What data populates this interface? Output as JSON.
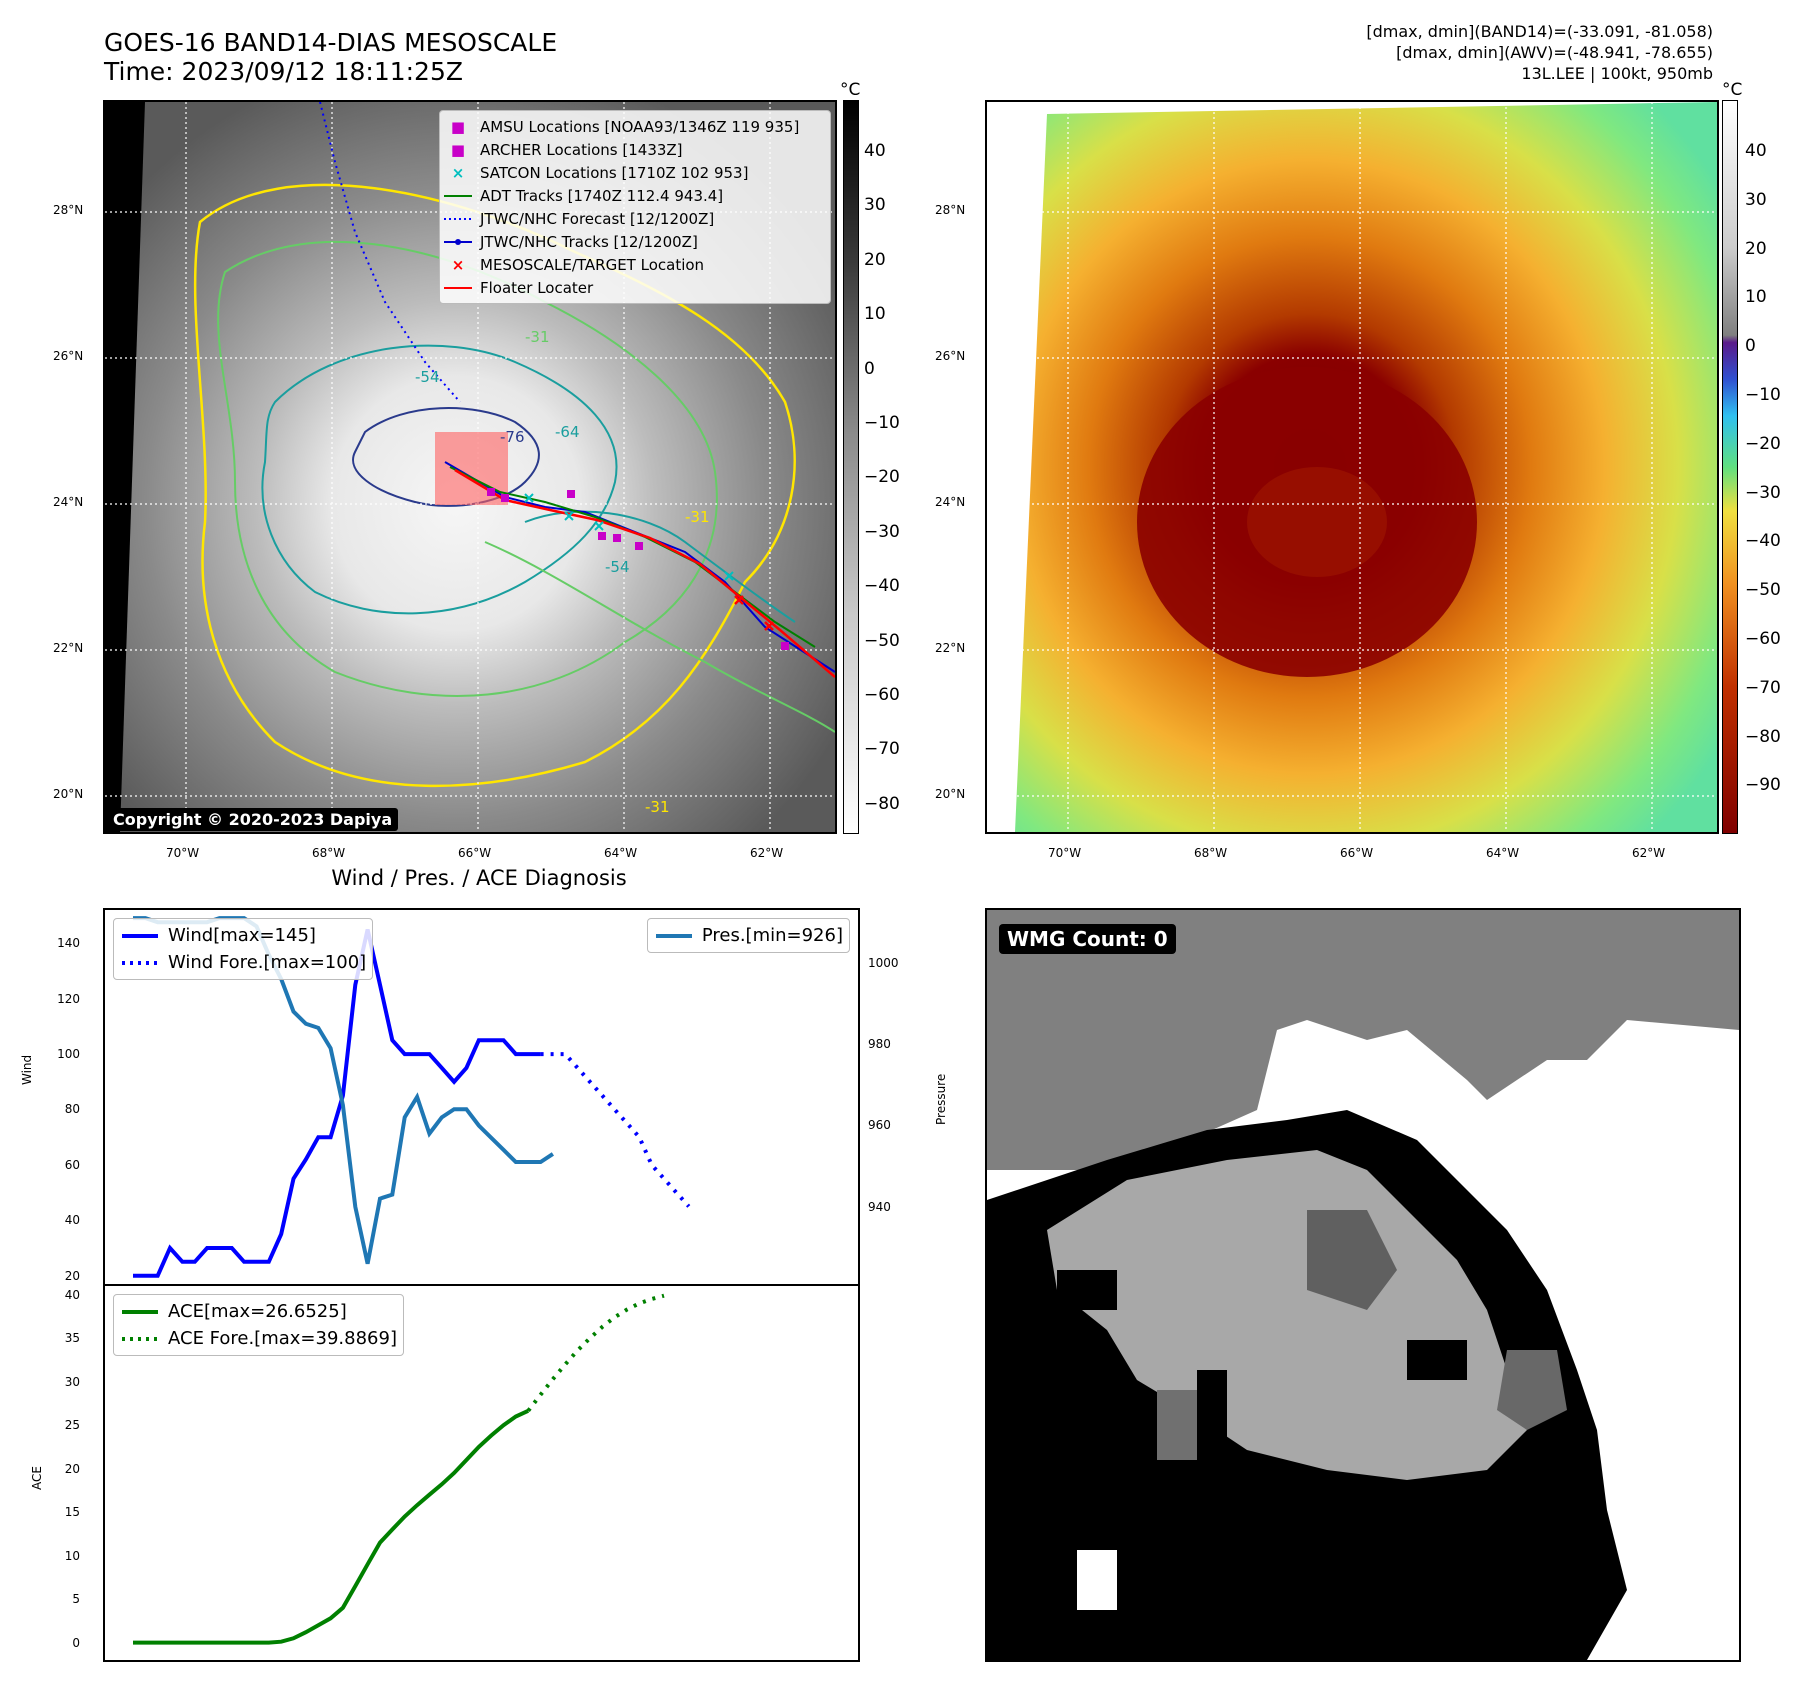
{
  "header": {
    "title_line1": "GOES-16 BAND14-DIAS MESOSCALE",
    "title_line2": "Time: 2023/09/12 18:11:25Z",
    "stats_line1": "[dmax, dmin](BAND14)=(-33.091, -81.058)",
    "stats_line2": "[dmax, dmin](AWV)=(-48.941, -78.655)",
    "stats_line3": "13L.LEE | 100kt, 950mb"
  },
  "map_axes": {
    "lat_labels": [
      "28°N",
      "26°N",
      "24°N",
      "22°N",
      "20°N"
    ],
    "lon_labels": [
      "70°W",
      "68°W",
      "66°W",
      "64°W",
      "62°W"
    ]
  },
  "colorbar_left": {
    "unit": "°C",
    "ticks": [
      "40",
      "30",
      "20",
      "10",
      "0",
      "−10",
      "−20",
      "−30",
      "−40",
      "−50",
      "−60",
      "−70",
      "−80"
    ]
  },
  "colorbar_right": {
    "unit": "°C",
    "ticks": [
      "40",
      "30",
      "20",
      "10",
      "0",
      "−10",
      "−20",
      "−30",
      "−40",
      "−50",
      "−60",
      "−70",
      "−80",
      "−90"
    ]
  },
  "contour_labels": [
    "-31",
    "-54",
    "-64",
    "-76",
    "-54",
    "-31",
    "-31"
  ],
  "map_legend": [
    {
      "label": "AMSU Locations [NOAA93/1346Z 119 935]",
      "symbol": "■",
      "color": "#c800c8"
    },
    {
      "label": "ARCHER Locations [1433Z]",
      "symbol": "■",
      "color": "#c800c8"
    },
    {
      "label": "SATCON Locations [1710Z 102 953]",
      "symbol": "×",
      "color": "#00bfbf"
    },
    {
      "label": "ADT Tracks [1740Z 112.4 943.4]",
      "symbol": "line",
      "color": "#008000"
    },
    {
      "label": "JTWC/NHC Forecast [12/1200Z]",
      "symbol": "dotted",
      "color": "#0000ff"
    },
    {
      "label": "JTWC/NHC Tracks [12/1200Z]",
      "symbol": "line-dot",
      "color": "#0000cd"
    },
    {
      "label": "MESOSCALE/TARGET Location",
      "symbol": "×",
      "color": "#ff0000"
    },
    {
      "label": "Floater Locater",
      "symbol": "line",
      "color": "#ff0000"
    }
  ],
  "copyright": "Copyright © 2020-2023 Dapiya",
  "wmg_count": "WMG Count: 0",
  "colors": {
    "wind": "#0000ff",
    "pressure": "#1f77b4",
    "ace": "#008000",
    "contour_yellow": "#ffe600",
    "contour_green": "#66cc66",
    "contour_teal": "#1a9e9e",
    "contour_navy": "#2a3a8c"
  },
  "chart_data": [
    {
      "type": "line",
      "title": "Wind / Pres. / ACE Diagnosis",
      "ylabel": "Wind",
      "ylabel_right": "Pressure",
      "ylim": [
        17,
        152
      ],
      "ylim_right": [
        921,
        1013
      ],
      "yticks": [
        20,
        40,
        60,
        80,
        100,
        120,
        140
      ],
      "yticks_right": [
        940,
        960,
        980,
        1000
      ],
      "series": [
        {
          "name": "Wind[max=145]",
          "style": "solid",
          "axis": "left",
          "values": [
            20,
            20,
            20,
            30,
            25,
            25,
            30,
            30,
            30,
            25,
            25,
            25,
            35,
            55,
            62,
            70,
            70,
            85,
            125,
            145,
            125,
            105,
            100,
            100,
            100,
            95,
            90,
            95,
            105,
            105,
            105,
            100,
            100,
            100
          ]
        },
        {
          "name": "Wind Fore.[max=100]",
          "style": "dotted",
          "axis": "left",
          "values": [
            100,
            100,
            100,
            95,
            90,
            85,
            80,
            75,
            70,
            60,
            55,
            50,
            45
          ]
        },
        {
          "name": "Pres.[min=926]",
          "style": "solid",
          "axis": "right",
          "values": [
            1011,
            1011,
            1010,
            1010,
            1010,
            1010,
            1010,
            1011,
            1011,
            1011,
            1009,
            1002,
            996,
            988,
            985,
            984,
            979,
            965,
            940,
            926,
            942,
            943,
            962,
            967,
            958,
            962,
            964,
            964,
            960,
            957,
            954,
            951,
            951,
            951,
            953
          ]
        }
      ]
    },
    {
      "type": "line",
      "ylabel": "ACE",
      "ylim": [
        -2,
        41
      ],
      "yticks": [
        0,
        5,
        10,
        15,
        20,
        25,
        30,
        35,
        40
      ],
      "series": [
        {
          "name": "ACE[max=26.6525]",
          "style": "solid",
          "values": [
            0,
            0,
            0,
            0,
            0,
            0,
            0,
            0,
            0,
            0,
            0,
            0,
            0.1,
            0.5,
            1.2,
            2.0,
            2.8,
            4.0,
            6.5,
            9.0,
            11.5,
            13.0,
            14.5,
            15.8,
            17.0,
            18.2,
            19.5,
            21.0,
            22.5,
            23.8,
            25.0,
            26.0,
            26.65
          ]
        },
        {
          "name": "ACE Fore.[max=39.8869]",
          "style": "dotted",
          "values": [
            26.65,
            28.5,
            30.3,
            32.0,
            33.6,
            35.0,
            36.3,
            37.4,
            38.3,
            39.0,
            39.5,
            39.89
          ]
        }
      ]
    }
  ]
}
